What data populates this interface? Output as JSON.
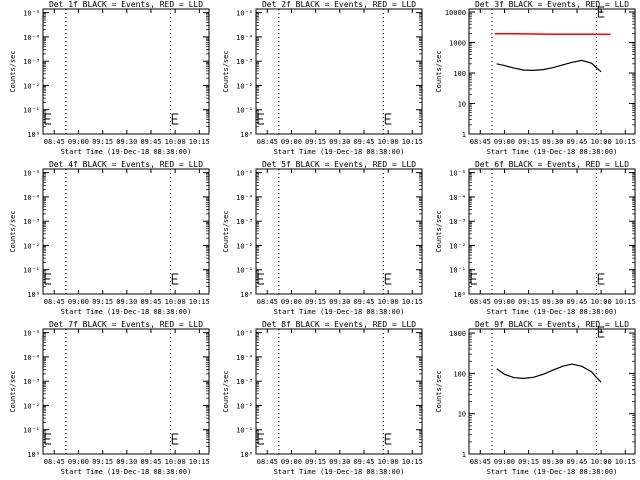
{
  "chart_data": [
    {
      "type": "line",
      "title": "Det 1f BLACK = Events, RED = LLD",
      "xlabel": "Start Time (19-Dec-18 08:38:00)",
      "ylabel": "Counts/sec",
      "x_tick_labels": [
        "08:45",
        "09:00",
        "09:15",
        "09:30",
        "09:45",
        "10:00",
        "10:15"
      ],
      "y_tick_labels": [
        "10⁰",
        "10⁻¹",
        "10⁻²",
        "10⁻³",
        "10⁻⁴",
        "10⁻⁵"
      ],
      "scale": "log",
      "series": []
    },
    {
      "type": "line",
      "title": "Det 2f BLACK = Events, RED = LLD",
      "xlabel": "Start Time (19-Dec-18 08:38:00)",
      "ylabel": "Counts/sec",
      "x_tick_labels": [
        "08:45",
        "09:00",
        "09:15",
        "09:30",
        "09:45",
        "10:00",
        "10:15"
      ],
      "y_tick_labels": [
        "10⁰",
        "10⁻¹",
        "10⁻²",
        "10⁻³",
        "10⁻⁴",
        "10⁻⁵"
      ],
      "scale": "log",
      "series": []
    },
    {
      "type": "line",
      "title": "Det 3f BLACK = Events, RED = LLD",
      "xlabel": "Start Time (19-Dec-18 08:38:00)",
      "ylabel": "Counts/sec",
      "x_tick_labels": [
        "08:45",
        "09:00",
        "09:15",
        "09:30",
        "09:45",
        "10:00",
        "10:15"
      ],
      "y_tick_labels": [
        "1",
        "10",
        "100",
        "1000",
        "10000"
      ],
      "scale": "log",
      "series": [
        {
          "color": "#ff0000",
          "x": [
            8.9,
            9.1,
            9.3,
            9.5,
            9.7,
            9.9,
            10.1
          ],
          "y": [
            1950,
            1930,
            1900,
            1880,
            1870,
            1860,
            1850
          ]
        },
        {
          "color": "#000000",
          "x": [
            8.92,
            9.0,
            9.1,
            9.2,
            9.3,
            9.4,
            9.5,
            9.6,
            9.7,
            9.8,
            9.9,
            9.95,
            10.0
          ],
          "y": [
            200,
            175,
            145,
            125,
            122,
            130,
            150,
            185,
            225,
            260,
            210,
            150,
            110
          ]
        }
      ]
    },
    {
      "type": "line",
      "title": "Det 4f BLACK = Events, RED = LLD",
      "xlabel": "Start Time (19-Dec-18 08:38:00)",
      "ylabel": "Counts/sec",
      "x_tick_labels": [
        "08:45",
        "09:00",
        "09:15",
        "09:30",
        "09:45",
        "10:00",
        "10:15"
      ],
      "y_tick_labels": [
        "10⁰",
        "10⁻¹",
        "10⁻²",
        "10⁻³",
        "10⁻⁴",
        "10⁻⁵"
      ],
      "scale": "log",
      "series": []
    },
    {
      "type": "line",
      "title": "Det 5f BLACK = Events, RED = LLD",
      "xlabel": "Start Time (19-Dec-18 08:38:00)",
      "ylabel": "Counts/sec",
      "x_tick_labels": [
        "08:45",
        "09:00",
        "09:15",
        "09:30",
        "09:45",
        "10:00",
        "10:15"
      ],
      "y_tick_labels": [
        "10⁰",
        "10⁻¹",
        "10⁻²",
        "10⁻³",
        "10⁻⁴",
        "10⁻⁵"
      ],
      "scale": "log",
      "series": []
    },
    {
      "type": "line",
      "title": "Det 6f BLACK = Events, RED = LLD",
      "xlabel": "Start Time (19-Dec-18 08:38:00)",
      "ylabel": "Counts/sec",
      "x_tick_labels": [
        "08:45",
        "09:00",
        "09:15",
        "09:30",
        "09:45",
        "10:00",
        "10:15"
      ],
      "y_tick_labels": [
        "10⁰",
        "10⁻¹",
        "10⁻²",
        "10⁻³",
        "10⁻⁴",
        "10⁻⁵"
      ],
      "scale": "log",
      "series": []
    },
    {
      "type": "line",
      "title": "Det 7f BLACK = Events, RED = LLD",
      "xlabel": "Start Time (19-Dec-18 08:38:00)",
      "ylabel": "Counts/sec",
      "x_tick_labels": [
        "08:45",
        "09:00",
        "09:15",
        "09:30",
        "09:45",
        "10:00",
        "10:15"
      ],
      "y_tick_labels": [
        "10⁰",
        "10⁻¹",
        "10⁻²",
        "10⁻³",
        "10⁻⁴",
        "10⁻⁵"
      ],
      "scale": "log",
      "series": []
    },
    {
      "type": "line",
      "title": "Det 8f BLACK = Events, RED = LLD",
      "xlabel": "Start Time (19-Dec-18 08:38:00)",
      "ylabel": "Counts/sec",
      "x_tick_labels": [
        "08:45",
        "09:00",
        "09:15",
        "09:30",
        "09:45",
        "10:00",
        "10:15"
      ],
      "y_tick_labels": [
        "10⁰",
        "10⁻¹",
        "10⁻²",
        "10⁻³",
        "10⁻⁴",
        "10⁻⁵"
      ],
      "scale": "log",
      "series": []
    },
    {
      "type": "line",
      "title": "Det 9f BLACK = Events, RED = LLD",
      "xlabel": "Start Time (19-Dec-18 08:38:00)",
      "ylabel": "Counts/sec",
      "x_tick_labels": [
        "08:45",
        "09:00",
        "09:15",
        "09:30",
        "09:45",
        "10:00",
        "10:15"
      ],
      "y_tick_labels": [
        "1",
        "10",
        "100",
        "1000"
      ],
      "scale": "log",
      "series": [
        {
          "color": "#000000",
          "x": [
            8.92,
            9.0,
            9.1,
            9.2,
            9.3,
            9.4,
            9.5,
            9.6,
            9.7,
            9.8,
            9.9,
            9.95,
            10.0
          ],
          "y": [
            130,
            95,
            78,
            75,
            80,
            95,
            120,
            150,
            170,
            150,
            110,
            80,
            60
          ]
        }
      ]
    }
  ]
}
